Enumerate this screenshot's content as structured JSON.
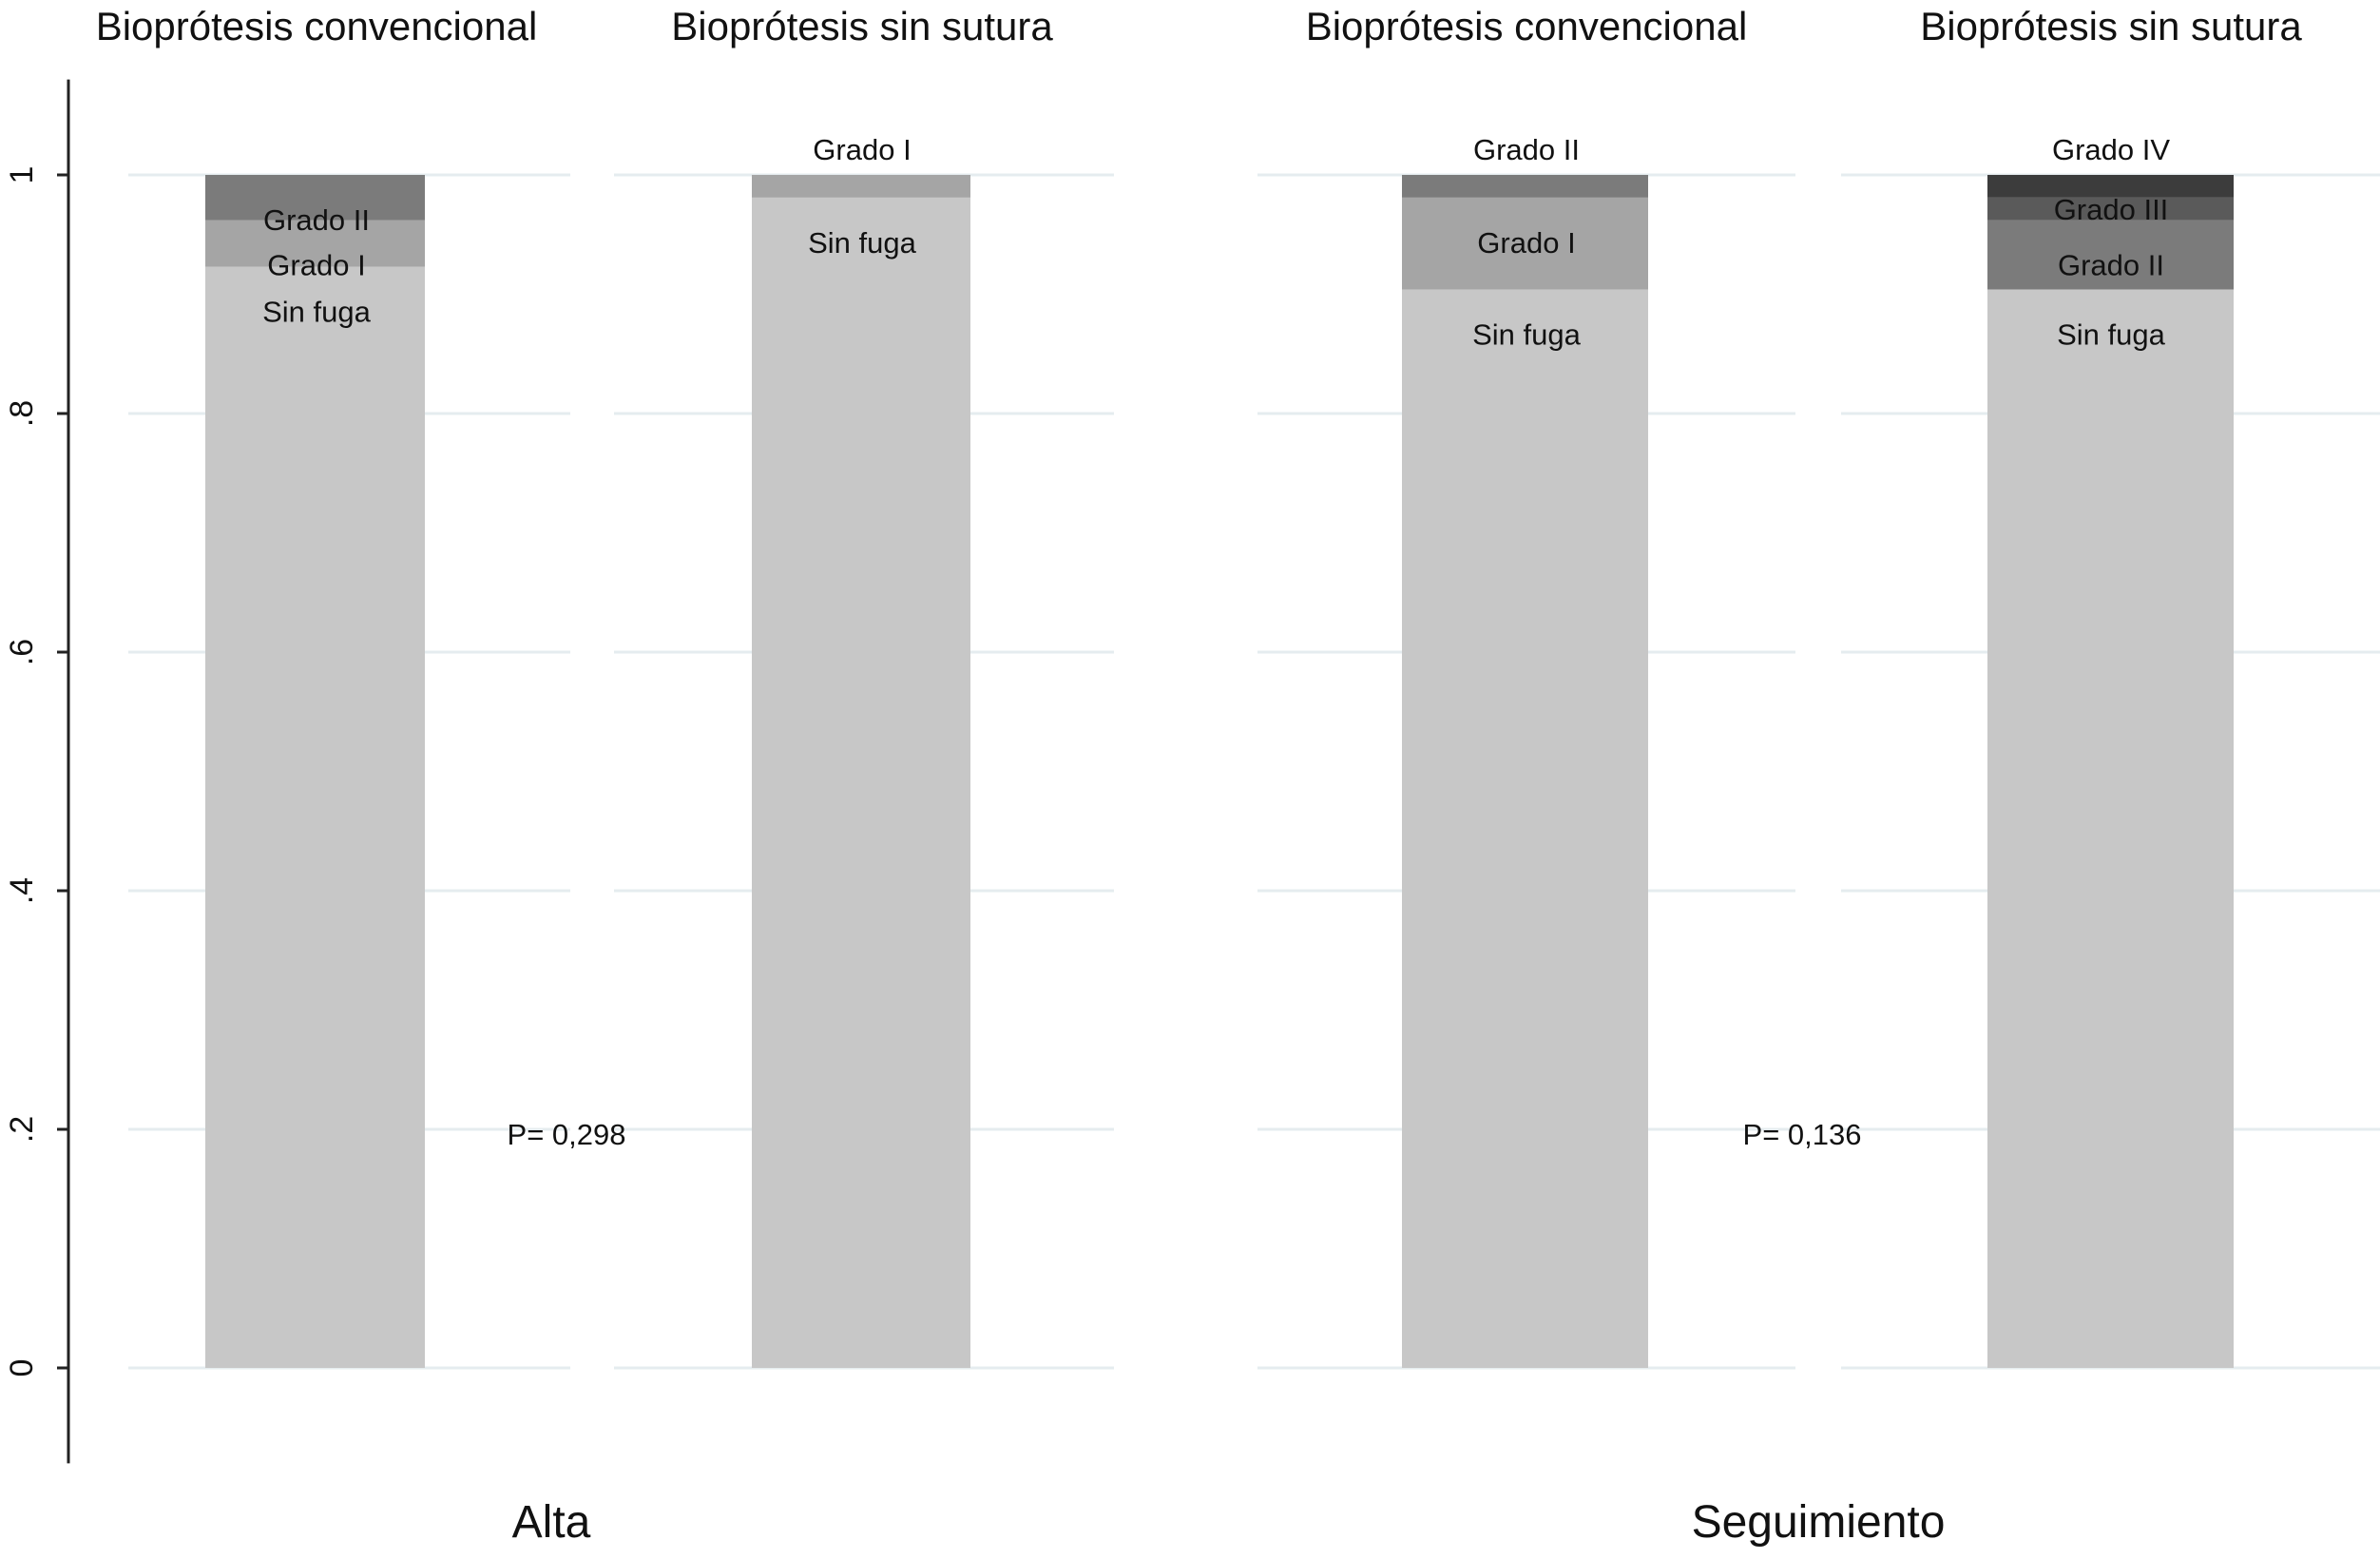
{
  "chart_data": {
    "type": "bar",
    "stacked": true,
    "yticks": [
      {
        "value": 0,
        "label": "0"
      },
      {
        "value": 0.2,
        "label": ".2"
      },
      {
        "value": 0.4,
        "label": ".4"
      },
      {
        "value": 0.6,
        "label": ".6"
      },
      {
        "value": 0.8,
        "label": ".8"
      },
      {
        "value": 1,
        "label": "1"
      }
    ],
    "ylim": [
      -0.08,
      1.08
    ],
    "grid": true,
    "colors": {
      "Sin fuga": "#c7c7c7",
      "Grado I": "#a5a5a5",
      "Grado II": "#7b7b7b",
      "Grado III": "#5a5a5a",
      "Grado IV": "#3c3c3c"
    },
    "groups": [
      {
        "name": "Alta",
        "p_value": "P= 0,298",
        "panels": [
          {
            "title": "Bioprótesis convencional",
            "segments": [
              {
                "label": "Sin fuga",
                "value": 0.923
              },
              {
                "label": "Grado I",
                "value": 0.039
              },
              {
                "label": "Grado II",
                "value": 0.038
              }
            ]
          },
          {
            "title": "Bioprótesis sin sutura",
            "segments": [
              {
                "label": "Sin fuga",
                "value": 0.981
              },
              {
                "label": "Grado I",
                "value": 0.019
              }
            ]
          }
        ]
      },
      {
        "name": "Seguimiento",
        "p_value": "P= 0,136",
        "panels": [
          {
            "title": "Bioprótesis convencional",
            "segments": [
              {
                "label": "Sin fuga",
                "value": 0.904
              },
              {
                "label": "Grado I",
                "value": 0.077
              },
              {
                "label": "Grado II",
                "value": 0.019
              }
            ]
          },
          {
            "title": "Bioprótesis sin sutura",
            "segments": [
              {
                "label": "Sin fuga",
                "value": 0.904
              },
              {
                "label": "Grado II",
                "value": 0.058
              },
              {
                "label": "Grado III",
                "value": 0.019
              },
              {
                "label": "Grado IV",
                "value": 0.019
              }
            ]
          }
        ]
      }
    ]
  }
}
